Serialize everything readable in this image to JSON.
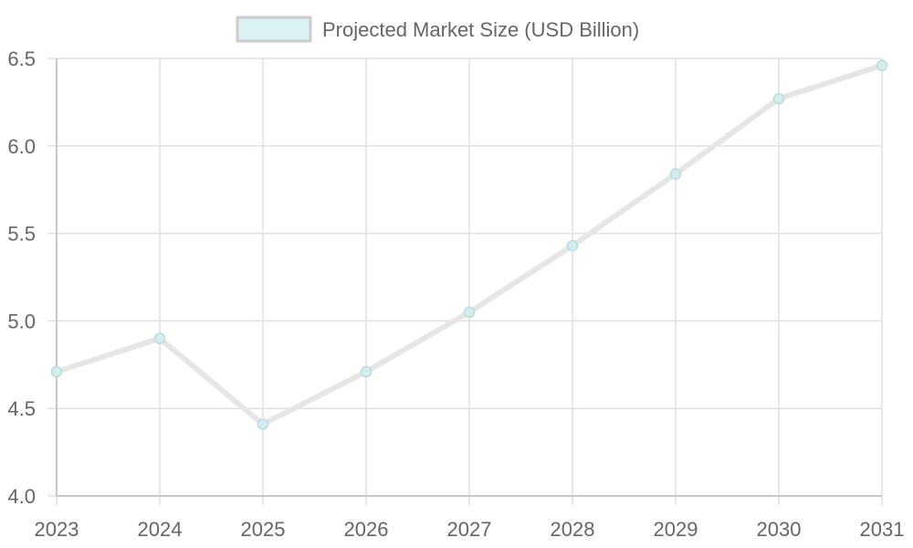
{
  "chart_data": {
    "type": "line",
    "title": "",
    "xlabel": "",
    "ylabel": "",
    "categories": [
      "2023",
      "2024",
      "2025",
      "2026",
      "2027",
      "2028",
      "2029",
      "2030",
      "2031"
    ],
    "series": [
      {
        "name": "Projected Market Size (USD Billion)",
        "values": [
          4.71,
          4.9,
          4.41,
          4.71,
          5.05,
          5.43,
          5.84,
          6.27,
          6.46
        ]
      }
    ],
    "ylim": [
      4.0,
      6.5
    ],
    "y_ticks": [
      "4.0",
      "4.5",
      "5.0",
      "5.5",
      "6.0",
      "6.5"
    ],
    "grid": true,
    "legend_position": "top",
    "colors": {
      "line": "#e6e6e6",
      "point_fill": "#d4eeee",
      "point_stroke": "#bcdcdc",
      "legend_fill": "#daf2f2",
      "legend_stroke": "#cccccc",
      "grid": "#e0e0e0",
      "axis": "#c8c8c8"
    }
  }
}
